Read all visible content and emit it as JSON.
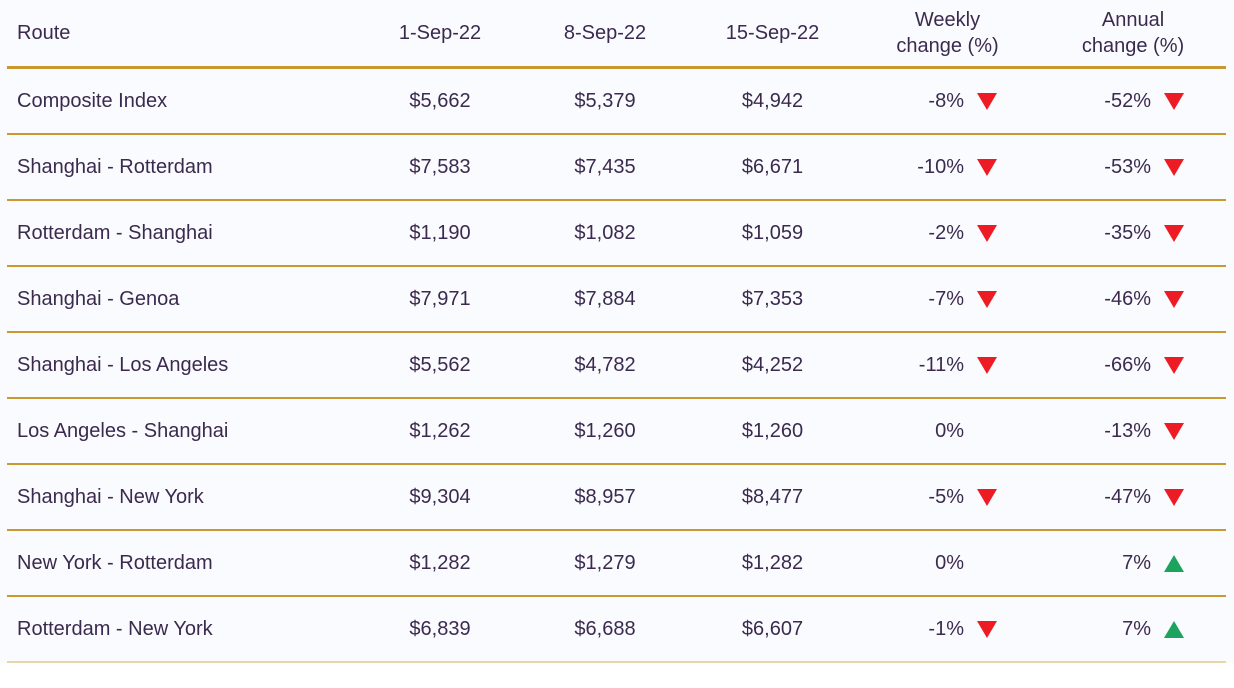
{
  "colors": {
    "gold_line": "#C9982E",
    "text": "#3B2A4E",
    "negative_red": "#ED1C24",
    "positive_green": "#1CA45E",
    "row_background": "#FAFBFE",
    "bottom_line": "#E7D6A8"
  },
  "table": {
    "header": {
      "route": "Route",
      "date1": "1-Sep-22",
      "date2": "8-Sep-22",
      "date3": "15-Sep-22",
      "weekly_line1": "Weekly",
      "weekly_line2": "change (%)",
      "annual_line1": "Annual",
      "annual_line2": "change (%)"
    },
    "rows": [
      {
        "route": "Composite Index",
        "rate_1sep": "$5,662",
        "rate_8sep": "$5,379",
        "rate_15sep": "$4,942",
        "weekly_change": "-8%",
        "weekly_direction": "down",
        "annual_change": "-52%",
        "annual_direction": "down"
      },
      {
        "route": "Shanghai - Rotterdam",
        "rate_1sep": "$7,583",
        "rate_8sep": "$7,435",
        "rate_15sep": "$6,671",
        "weekly_change": "-10%",
        "weekly_direction": "down",
        "annual_change": "-53%",
        "annual_direction": "down"
      },
      {
        "route": "Rotterdam - Shanghai",
        "rate_1sep": "$1,190",
        "rate_8sep": "$1,082",
        "rate_15sep": "$1,059",
        "weekly_change": "-2%",
        "weekly_direction": "down",
        "annual_change": "-35%",
        "annual_direction": "down"
      },
      {
        "route": "Shanghai - Genoa",
        "rate_1sep": "$7,971",
        "rate_8sep": "$7,884",
        "rate_15sep": "$7,353",
        "weekly_change": "-7%",
        "weekly_direction": "down",
        "annual_change": "-46%",
        "annual_direction": "down"
      },
      {
        "route": "Shanghai - Los Angeles",
        "rate_1sep": "$5,562",
        "rate_8sep": "$4,782",
        "rate_15sep": "$4,252",
        "weekly_change": "-11%",
        "weekly_direction": "down",
        "annual_change": "-66%",
        "annual_direction": "down"
      },
      {
        "route": "Los Angeles - Shanghai",
        "rate_1sep": "$1,262",
        "rate_8sep": "$1,260",
        "rate_15sep": "$1,260",
        "weekly_change": "0%",
        "weekly_direction": "none",
        "annual_change": "-13%",
        "annual_direction": "down"
      },
      {
        "route": "Shanghai - New York",
        "rate_1sep": "$9,304",
        "rate_8sep": "$8,957",
        "rate_15sep": "$8,477",
        "weekly_change": "-5%",
        "weekly_direction": "down",
        "annual_change": "-47%",
        "annual_direction": "down"
      },
      {
        "route": "New York - Rotterdam",
        "rate_1sep": "$1,282",
        "rate_8sep": "$1,279",
        "rate_15sep": "$1,282",
        "weekly_change": "0%",
        "weekly_direction": "none",
        "annual_change": "7%",
        "annual_direction": "up"
      },
      {
        "route": "Rotterdam - New York",
        "rate_1sep": "$6,839",
        "rate_8sep": "$6,688",
        "rate_15sep": "$6,607",
        "weekly_change": "-1%",
        "weekly_direction": "down",
        "annual_change": "7%",
        "annual_direction": "up"
      }
    ]
  },
  "chart_data": {
    "type": "table",
    "columns": [
      "Route",
      "1-Sep-22",
      "8-Sep-22",
      "15-Sep-22",
      "Weekly change (%)",
      "Annual change (%)"
    ],
    "rows": [
      [
        "Composite Index",
        5662,
        5379,
        4942,
        -8,
        -52
      ],
      [
        "Shanghai - Rotterdam",
        7583,
        7435,
        6671,
        -10,
        -53
      ],
      [
        "Rotterdam - Shanghai",
        1190,
        1082,
        1059,
        -2,
        -35
      ],
      [
        "Shanghai - Genoa",
        7971,
        7884,
        7353,
        -7,
        -46
      ],
      [
        "Shanghai - Los Angeles",
        5562,
        4782,
        4252,
        -11,
        -66
      ],
      [
        "Los Angeles - Shanghai",
        1262,
        1260,
        1260,
        0,
        -13
      ],
      [
        "Shanghai - New York",
        9304,
        8957,
        8477,
        -5,
        -47
      ],
      [
        "New York - Rotterdam",
        1282,
        1279,
        1282,
        0,
        7
      ],
      [
        "Rotterdam - New York",
        6839,
        6688,
        6607,
        -1,
        7
      ]
    ]
  }
}
